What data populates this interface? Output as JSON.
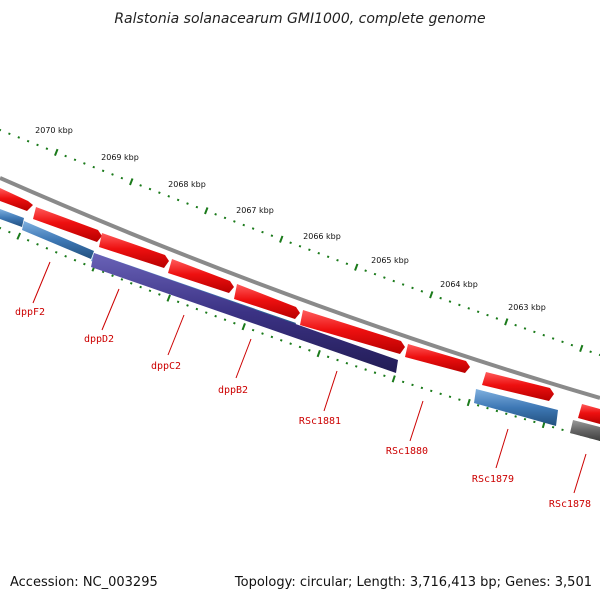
{
  "title": "Ralstonia solanacearum GMI1000, complete genome",
  "footer": {
    "accession": "Accession: NC_003295",
    "summary": "Topology: circular; Length: 3,716,413 bp; Genes: 3,501"
  },
  "ruler": {
    "labels": [
      "2070 kbp",
      "2069 kbp",
      "2068 kbp",
      "2067 kbp",
      "2066 kbp",
      "2065 kbp",
      "2064 kbp",
      "2063 kbp"
    ]
  },
  "genes": [
    {
      "name": "dppF2"
    },
    {
      "name": "dppD2"
    },
    {
      "name": "dppC2"
    },
    {
      "name": "dppB2"
    },
    {
      "name": "RSc1881"
    },
    {
      "name": "RSc1880"
    },
    {
      "name": "RSc1879"
    },
    {
      "name": "RSc1878"
    }
  ],
  "colors": {
    "forward_cds": "#e8101a",
    "reverse_cds_blue": "#3e78b5",
    "reverse_cds_purple": "#3b3284",
    "reverse_cds_gray": "#666666",
    "backbone": "#8a8a8a",
    "ruler_ticks": "#1a7a1a",
    "gene_label": "#cc0000"
  }
}
